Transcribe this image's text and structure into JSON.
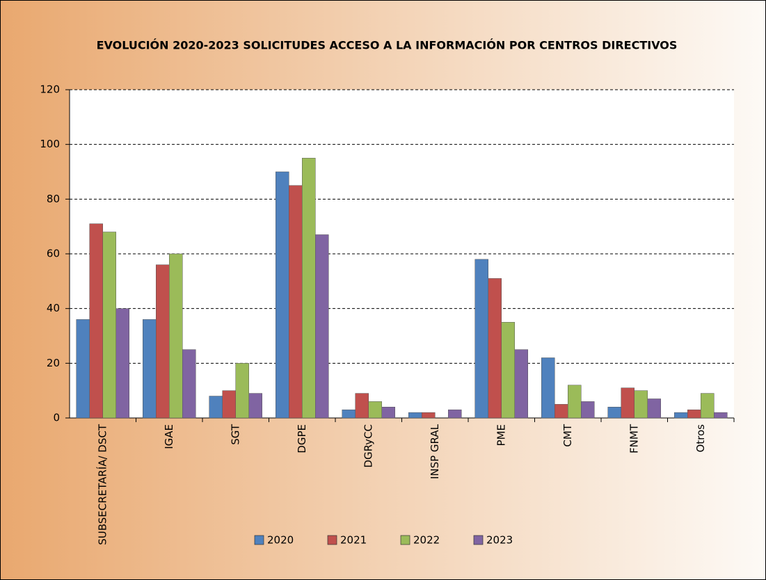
{
  "chart_data": {
    "type": "bar",
    "title": "EVOLUCIÓN 2020-2023 SOLICITUDES ACCESO A LA INFORMACIÓN POR CENTROS DIRECTIVOS",
    "categories": [
      "SUBSECRETARÍA/ DSCT",
      "IGAE",
      "SGT",
      "DGPE",
      "DGRyCC",
      "INSP GRAL",
      "PME",
      "CMT",
      "FNMT",
      "Otros"
    ],
    "series": [
      {
        "name": "2020",
        "color": "#4f81bd",
        "values": [
          36,
          36,
          8,
          90,
          3,
          2,
          58,
          22,
          4,
          2
        ]
      },
      {
        "name": "2021",
        "color": "#c0504d",
        "values": [
          71,
          56,
          10,
          85,
          9,
          2,
          51,
          5,
          11,
          3
        ]
      },
      {
        "name": "2022",
        "color": "#9bbb59",
        "values": [
          68,
          60,
          20,
          95,
          6,
          0,
          35,
          12,
          10,
          9
        ]
      },
      {
        "name": "2023",
        "color": "#8064a2",
        "values": [
          40,
          25,
          9,
          67,
          4,
          3,
          25,
          6,
          7,
          2
        ]
      }
    ],
    "ylim": [
      0,
      120
    ],
    "yticks": [
      0,
      20,
      40,
      60,
      80,
      100,
      120
    ],
    "grid": true
  }
}
